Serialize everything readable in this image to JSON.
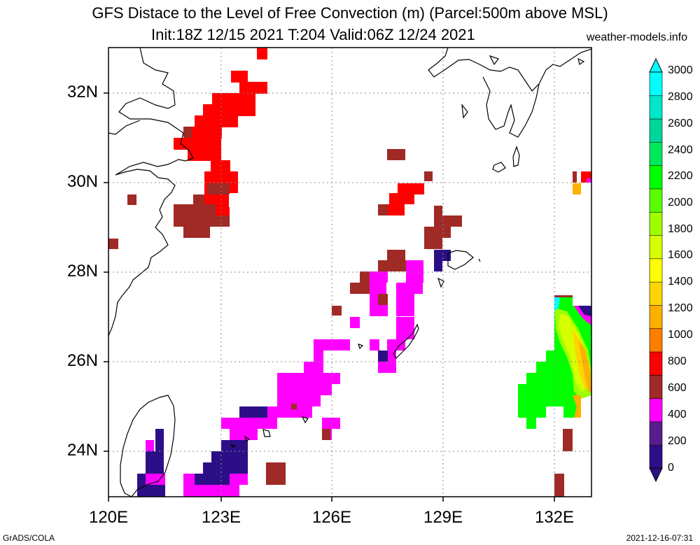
{
  "header": {
    "title_line1": "GFS Distace to the Level of Free Convection (m) (Parcel:500m above MSL)",
    "title_line2": "Init:18Z 12/15 2021 T:204 Valid:06Z 12/24 2021",
    "site": "weather-models.info"
  },
  "footer": {
    "left": "GrADS/COLA",
    "right": "2021-12-16-07:31"
  },
  "axes": {
    "lat_labels": [
      "32N",
      "30N",
      "28N",
      "26N",
      "24N"
    ],
    "lon_labels": [
      "120E",
      "123E",
      "126E",
      "129E",
      "132E"
    ],
    "lat_range": [
      23,
      33
    ],
    "lon_range": [
      120,
      133
    ],
    "grid": "dotted"
  },
  "colorbar": {
    "labels": [
      "3000",
      "2800",
      "2600",
      "2400",
      "2200",
      "2000",
      "1800",
      "1600",
      "1400",
      "1200",
      "1000",
      "800",
      "600",
      "400",
      "200",
      "0"
    ],
    "colors": [
      "#2c0f86",
      "#5a1c8c",
      "#ff00ff",
      "#a02a26",
      "#ff0000",
      "#ff7e00",
      "#ffb000",
      "#ffd400",
      "#ffff00",
      "#d6ff00",
      "#9eff00",
      "#58ff00",
      "#00ff00",
      "#00e95a",
      "#00d69a",
      "#00e6c8",
      "#00ffff"
    ]
  }
}
